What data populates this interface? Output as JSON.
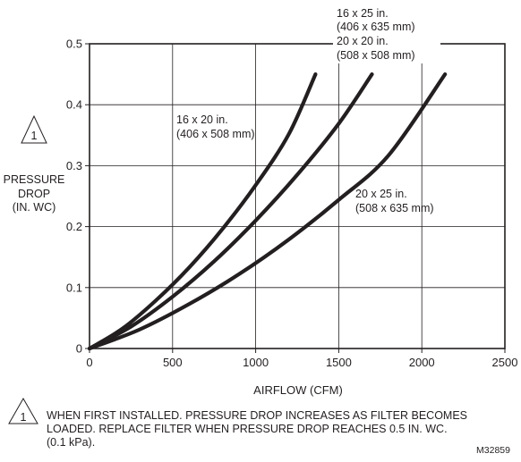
{
  "chart_data": {
    "type": "line",
    "xlabel": "AIRFLOW (CFM)",
    "ylabel": [
      "PRESSURE",
      "DROP",
      "(IN. WC)"
    ],
    "xlim": [
      0,
      2500
    ],
    "ylim": [
      0,
      0.5
    ],
    "x_ticks": [
      0,
      500,
      1000,
      1500,
      2000,
      2500
    ],
    "y_ticks": [
      0,
      0.1,
      0.2,
      0.3,
      0.4,
      0.5
    ],
    "x_tick_labels": [
      "0",
      "500",
      "1000",
      "1500",
      "2000",
      "2500"
    ],
    "y_tick_labels": [
      "0",
      "0.1",
      "0.2",
      "0.3",
      "0.4",
      "0.5"
    ],
    "grid": true,
    "series": [
      {
        "name": [
          "16 x 20 in.",
          "(406 x 508 mm)"
        ],
        "x": [
          0,
          200,
          400,
          600,
          800,
          1000,
          1200,
          1360
        ],
        "y": [
          0,
          0.033,
          0.079,
          0.133,
          0.196,
          0.268,
          0.352,
          0.45
        ]
      },
      {
        "name": [
          "16 x 25 in.",
          "(406 x 635 mm)",
          "20 x 20 in.",
          "(508 x 508 mm)"
        ],
        "x": [
          0,
          250,
          500,
          750,
          1000,
          1250,
          1500,
          1700
        ],
        "y": [
          0,
          0.036,
          0.085,
          0.143,
          0.21,
          0.285,
          0.369,
          0.45
        ]
      },
      {
        "name": [
          "20 x 25 in.",
          "(508 x 635 mm)"
        ],
        "x": [
          0,
          300,
          600,
          900,
          1200,
          1500,
          1800,
          2140
        ],
        "y": [
          0,
          0.031,
          0.073,
          0.122,
          0.179,
          0.244,
          0.317,
          0.45
        ]
      }
    ]
  },
  "note_marker": "1",
  "footnote": "WHEN FIRST INSTALLED. PRESSURE DROP INCREASES AS FILTER BECOMES LOADED. REPLACE FILTER WHEN PRESSURE DROP REACHES 0.5 IN. WC. (0.1 kPa).",
  "figure_code": "M32859"
}
